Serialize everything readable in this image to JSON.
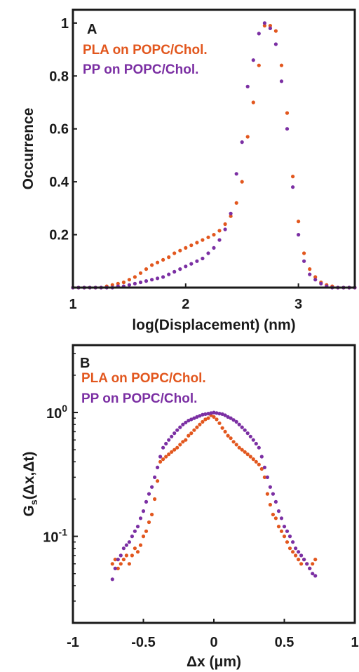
{
  "chart_data": [
    {
      "panel": "A",
      "type": "scatter",
      "xlabel": "log(Displacement) (nm)",
      "ylabel": "Occurrence",
      "xlim": [
        1,
        3.5
      ],
      "ylim": [
        0,
        1.05
      ],
      "x_ticks": [
        1,
        2,
        3
      ],
      "x_tick_labels": [
        "1",
        "2",
        "3"
      ],
      "y_ticks": [
        0.2,
        0.4,
        0.6,
        0.8,
        1
      ],
      "y_tick_labels": [
        "0.2",
        "0.4",
        "0.6",
        "0.8",
        "1"
      ],
      "legend_position": "top-left",
      "colors": {
        "PLA on POPC/Chol.": "#e2571e",
        "PP on POPC/Chol.": "#7b2fa3"
      },
      "series": [
        {
          "name": "PLA on POPC/Chol.",
          "x": [
            1.0,
            1.05,
            1.1,
            1.15,
            1.2,
            1.25,
            1.3,
            1.35,
            1.4,
            1.45,
            1.5,
            1.55,
            1.6,
            1.65,
            1.7,
            1.75,
            1.8,
            1.85,
            1.9,
            1.95,
            2.0,
            2.05,
            2.1,
            2.15,
            2.2,
            2.25,
            2.3,
            2.35,
            2.4,
            2.45,
            2.5,
            2.55,
            2.6,
            2.65,
            2.7,
            2.75,
            2.8,
            2.85,
            2.9,
            2.95,
            3.0,
            3.05,
            3.1,
            3.15,
            3.2,
            3.25,
            3.3,
            3.35,
            3.4,
            3.45,
            3.5
          ],
          "y": [
            0.0,
            0.0,
            0.0,
            0.0,
            0.0,
            0.0,
            0.005,
            0.01,
            0.015,
            0.02,
            0.03,
            0.04,
            0.055,
            0.07,
            0.085,
            0.095,
            0.105,
            0.115,
            0.13,
            0.14,
            0.15,
            0.16,
            0.17,
            0.18,
            0.19,
            0.2,
            0.215,
            0.24,
            0.27,
            0.32,
            0.4,
            0.57,
            0.7,
            0.84,
            0.99,
            0.99,
            0.97,
            0.84,
            0.66,
            0.42,
            0.25,
            0.13,
            0.07,
            0.04,
            0.02,
            0.01,
            0.005,
            0.0,
            0.0,
            0.0,
            0.0
          ]
        },
        {
          "name": "PP on POPC/Chol.",
          "x": [
            1.0,
            1.05,
            1.1,
            1.15,
            1.2,
            1.25,
            1.3,
            1.35,
            1.4,
            1.45,
            1.5,
            1.55,
            1.6,
            1.65,
            1.7,
            1.75,
            1.8,
            1.85,
            1.9,
            1.95,
            2.0,
            2.05,
            2.1,
            2.15,
            2.2,
            2.25,
            2.3,
            2.35,
            2.4,
            2.45,
            2.5,
            2.55,
            2.6,
            2.65,
            2.7,
            2.75,
            2.8,
            2.85,
            2.9,
            2.95,
            3.0,
            3.05,
            3.1,
            3.15,
            3.2,
            3.25,
            3.3,
            3.35,
            3.4,
            3.45,
            3.5
          ],
          "y": [
            0.0,
            0.0,
            0.0,
            0.0,
            0.0,
            0.0,
            0.0,
            0.0,
            0.005,
            0.005,
            0.01,
            0.015,
            0.02,
            0.025,
            0.03,
            0.035,
            0.04,
            0.05,
            0.06,
            0.07,
            0.08,
            0.09,
            0.1,
            0.11,
            0.13,
            0.15,
            0.18,
            0.22,
            0.28,
            0.43,
            0.55,
            0.76,
            0.86,
            0.96,
            1.0,
            0.98,
            0.92,
            0.78,
            0.6,
            0.38,
            0.2,
            0.1,
            0.05,
            0.03,
            0.015,
            0.005,
            0.0,
            0.0,
            0.0,
            0.0,
            0.0
          ]
        }
      ]
    },
    {
      "panel": "B",
      "type": "scatter",
      "xlabel": "Δx (μm)",
      "ylabel": "Gs(Δx,Δt)",
      "ylabel_main": "G",
      "ylabel_sub": "s",
      "ylabel_rest": "(Δx,Δt)",
      "xlim": [
        -1,
        1
      ],
      "ylim": [
        0.02,
        3.5
      ],
      "y_scale": "log",
      "x_ticks": [
        -1,
        -0.5,
        0,
        0.5,
        1
      ],
      "x_tick_labels": [
        "-1",
        "-0.5",
        "0",
        "0.5",
        "1"
      ],
      "y_ticks": [
        1,
        0.1
      ],
      "y_tick_labels": [
        {
          "base": "10",
          "exp": "0"
        },
        {
          "base": "10",
          "exp": "-1"
        }
      ],
      "legend_position": "top-left",
      "colors": {
        "PLA on POPC/Chol.": "#e2571e",
        "PP on POPC/Chol.": "#7b2fa3"
      },
      "series": [
        {
          "name": "PLA on POPC/Chol.",
          "x": [
            -0.72,
            -0.7,
            -0.68,
            -0.66,
            -0.64,
            -0.62,
            -0.6,
            -0.58,
            -0.56,
            -0.54,
            -0.52,
            -0.5,
            -0.48,
            -0.46,
            -0.44,
            -0.42,
            -0.4,
            -0.38,
            -0.36,
            -0.34,
            -0.32,
            -0.3,
            -0.28,
            -0.26,
            -0.24,
            -0.22,
            -0.2,
            -0.18,
            -0.16,
            -0.14,
            -0.12,
            -0.1,
            -0.08,
            -0.06,
            -0.04,
            -0.02,
            0.0,
            0.02,
            0.04,
            0.06,
            0.08,
            0.1,
            0.12,
            0.14,
            0.16,
            0.18,
            0.2,
            0.22,
            0.24,
            0.26,
            0.28,
            0.3,
            0.32,
            0.34,
            0.36,
            0.38,
            0.4,
            0.42,
            0.44,
            0.46,
            0.48,
            0.5,
            0.52,
            0.54,
            0.56,
            0.58,
            0.6,
            0.62,
            0.64,
            0.66,
            0.68,
            0.7,
            0.72
          ],
          "y": [
            0.06,
            0.065,
            0.055,
            0.06,
            0.065,
            0.07,
            0.06,
            0.07,
            0.08,
            0.075,
            0.085,
            0.1,
            0.11,
            0.13,
            0.15,
            0.2,
            0.28,
            0.4,
            0.42,
            0.44,
            0.46,
            0.48,
            0.5,
            0.52,
            0.55,
            0.58,
            0.6,
            0.65,
            0.68,
            0.72,
            0.76,
            0.8,
            0.84,
            0.88,
            0.9,
            0.95,
            0.92,
            0.88,
            0.82,
            0.75,
            0.7,
            0.65,
            0.62,
            0.58,
            0.55,
            0.52,
            0.5,
            0.48,
            0.46,
            0.44,
            0.42,
            0.4,
            0.38,
            0.35,
            0.3,
            0.22,
            0.18,
            0.15,
            0.14,
            0.12,
            0.11,
            0.1,
            0.09,
            0.08,
            0.075,
            0.07,
            0.065,
            0.06,
            0.065,
            0.06,
            0.055,
            0.06,
            0.065
          ]
        },
        {
          "name": "PP on POPC/Chol.",
          "x": [
            -0.72,
            -0.7,
            -0.68,
            -0.66,
            -0.64,
            -0.62,
            -0.6,
            -0.58,
            -0.56,
            -0.54,
            -0.52,
            -0.5,
            -0.48,
            -0.46,
            -0.44,
            -0.42,
            -0.4,
            -0.38,
            -0.36,
            -0.34,
            -0.32,
            -0.3,
            -0.28,
            -0.26,
            -0.24,
            -0.22,
            -0.2,
            -0.18,
            -0.16,
            -0.14,
            -0.12,
            -0.1,
            -0.08,
            -0.06,
            -0.04,
            -0.02,
            0.0,
            0.02,
            0.04,
            0.06,
            0.08,
            0.1,
            0.12,
            0.14,
            0.16,
            0.18,
            0.2,
            0.22,
            0.24,
            0.26,
            0.28,
            0.3,
            0.32,
            0.34,
            0.36,
            0.38,
            0.4,
            0.42,
            0.44,
            0.46,
            0.48,
            0.5,
            0.52,
            0.54,
            0.56,
            0.58,
            0.6,
            0.62,
            0.64,
            0.66,
            0.68,
            0.7,
            0.72
          ],
          "y": [
            0.045,
            0.055,
            0.065,
            0.07,
            0.08,
            0.085,
            0.09,
            0.1,
            0.11,
            0.12,
            0.14,
            0.16,
            0.19,
            0.22,
            0.25,
            0.3,
            0.36,
            0.44,
            0.52,
            0.56,
            0.6,
            0.64,
            0.68,
            0.72,
            0.76,
            0.8,
            0.83,
            0.86,
            0.88,
            0.9,
            0.92,
            0.94,
            0.96,
            0.97,
            0.98,
            0.99,
            1.0,
            0.99,
            0.98,
            0.97,
            0.95,
            0.92,
            0.9,
            0.87,
            0.84,
            0.8,
            0.76,
            0.72,
            0.68,
            0.64,
            0.6,
            0.56,
            0.52,
            0.44,
            0.36,
            0.3,
            0.25,
            0.22,
            0.19,
            0.16,
            0.14,
            0.12,
            0.11,
            0.1,
            0.09,
            0.08,
            0.075,
            0.07,
            0.065,
            0.06,
            0.055,
            0.05,
            0.048
          ]
        }
      ]
    }
  ]
}
